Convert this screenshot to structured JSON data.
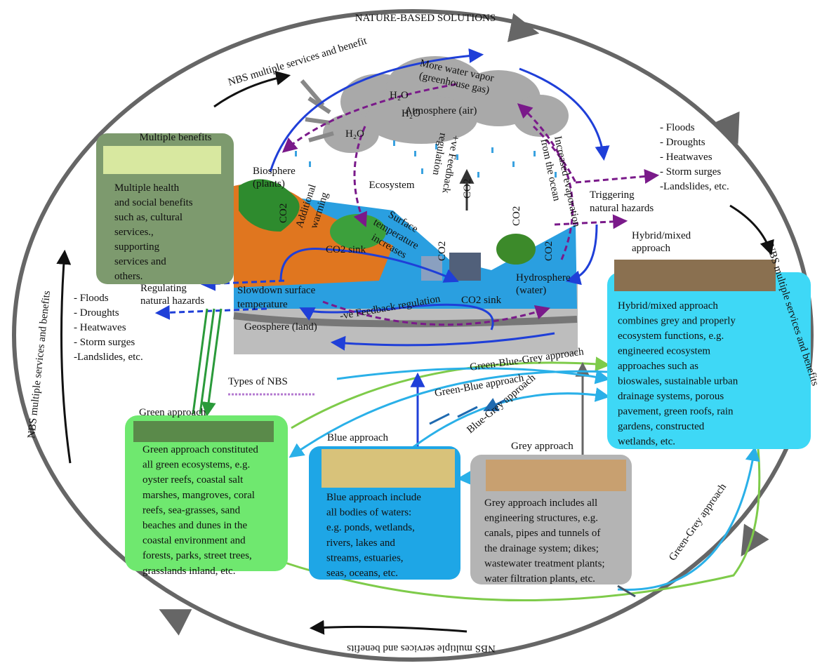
{
  "title": "NATURE-BASED SOLUTIONS",
  "ring": {
    "top": "NBS multiple services and benefit",
    "right": "NBS multiple services and benefits",
    "bottom": "NBS multiple services and benefits",
    "left": "NBS multiple services and benefits"
  },
  "cycle": {
    "water_vapor": [
      "More water vapor",
      "(greenhouse gas)"
    ],
    "atmosphere": "Atmosphere (air)",
    "h2o": [
      "H₂O",
      "H₂O",
      "H₂O"
    ],
    "additional_warming": [
      "Additional",
      "warming"
    ],
    "biosphere": [
      "Biosphere",
      "(plants)"
    ],
    "ecosystem": "Ecosystem",
    "co2": [
      "CO2",
      "CO2",
      "CO2",
      "CO2",
      "CO2"
    ],
    "positive_feedback": [
      "+ve Feedback",
      "regulation"
    ],
    "evaporation": [
      "Increased evaporation",
      "from the ocean"
    ],
    "surface_temperature": [
      "Surface",
      "temperature",
      "increases"
    ],
    "co2_sink": [
      "CO2 sink",
      "CO2 sink"
    ],
    "hydrosphere": [
      "Hydrosphere",
      "(water)"
    ],
    "slowdown": [
      "Slowdown surface",
      "temperature"
    ],
    "negative_feedback": "-ve Feedback regulation",
    "geosphere": "Geosphere (land)",
    "triggering": [
      "Triggering",
      "natural hazards"
    ],
    "regulating": [
      "Regulating",
      "natural hazards"
    ]
  },
  "hazards_right": [
    "- Floods",
    "- Droughts",
    "- Heatwaves",
    "- Storm surges",
    "-Landslides, etc."
  ],
  "hazards_left": [
    "- Floods",
    "- Droughts",
    "- Heatwaves",
    "- Storm surges",
    "-Landslides, etc."
  ],
  "benefits": {
    "title": "Multiple benefits",
    "text": [
      "Multiple health",
      "and social benefits",
      "such as, cultural",
      "services.,",
      "supporting",
      "services and",
      "others."
    ]
  },
  "types_title": "Types of NBS",
  "approaches": {
    "hybrid": {
      "title": [
        "Hybrid/mixed",
        "approach"
      ],
      "text": [
        "Hybrid/mixed approach",
        "combines grey and properly",
        "ecosystem functions, e.g.",
        "engineered ecosystem",
        "approaches such as",
        "bioswales, sustainable urban",
        "drainage systems, porous",
        "pavement, green roofs, rain",
        "gardens, constructed",
        "wetlands, etc."
      ]
    },
    "green": {
      "title": "Green approach",
      "text": [
        "Green approach constituted",
        "all green ecosystems, e.g.",
        "oyster reefs, coastal salt",
        "marshes, mangroves, coral",
        "reefs, sea-grasses, sand",
        "beaches and dunes in the",
        "coastal environment and",
        "forests, parks, street trees,",
        "grasslands inland, etc."
      ]
    },
    "blue": {
      "title": "Blue approach",
      "text": [
        "Blue approach include",
        "all bodies of  waters:",
        "e.g. ponds, wetlands,",
        "rivers, lakes and",
        "streams, estuaries,",
        "seas,  oceans, etc."
      ]
    },
    "grey": {
      "title": "Grey approach",
      "text": [
        "Grey approach includes all",
        "engineering structures, e.g.",
        "canals, pipes and tunnels of",
        "the drainage system; dikes;",
        "wastewater treatment plants;",
        "water filtration plants, etc."
      ]
    }
  },
  "links": [
    "Green-Blue-Grey approach",
    "Green-Blue approach",
    "Blue-Grey approach",
    "Green-Grey approach"
  ]
}
